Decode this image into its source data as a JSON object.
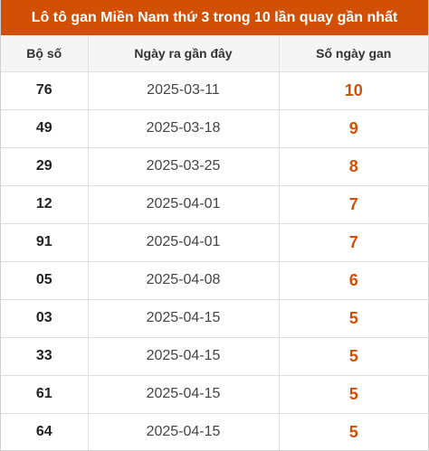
{
  "title": "Lô tô gan Miền Nam thứ 3 trong 10 lần quay gần nhất",
  "colors": {
    "accent": "#d24f06",
    "header_bg": "#f5f5f5",
    "border": "#e0e0e0"
  },
  "table": {
    "headers": [
      "Bộ số",
      "Ngày ra gần đây",
      "Số ngày gan"
    ],
    "rows": [
      {
        "number": "76",
        "date": "2025-03-11",
        "days": "10"
      },
      {
        "number": "49",
        "date": "2025-03-18",
        "days": "9"
      },
      {
        "number": "29",
        "date": "2025-03-25",
        "days": "8"
      },
      {
        "number": "12",
        "date": "2025-04-01",
        "days": "7"
      },
      {
        "number": "91",
        "date": "2025-04-01",
        "days": "7"
      },
      {
        "number": "05",
        "date": "2025-04-08",
        "days": "6"
      },
      {
        "number": "03",
        "date": "2025-04-15",
        "days": "5"
      },
      {
        "number": "33",
        "date": "2025-04-15",
        "days": "5"
      },
      {
        "number": "61",
        "date": "2025-04-15",
        "days": "5"
      },
      {
        "number": "64",
        "date": "2025-04-15",
        "days": "5"
      }
    ]
  }
}
